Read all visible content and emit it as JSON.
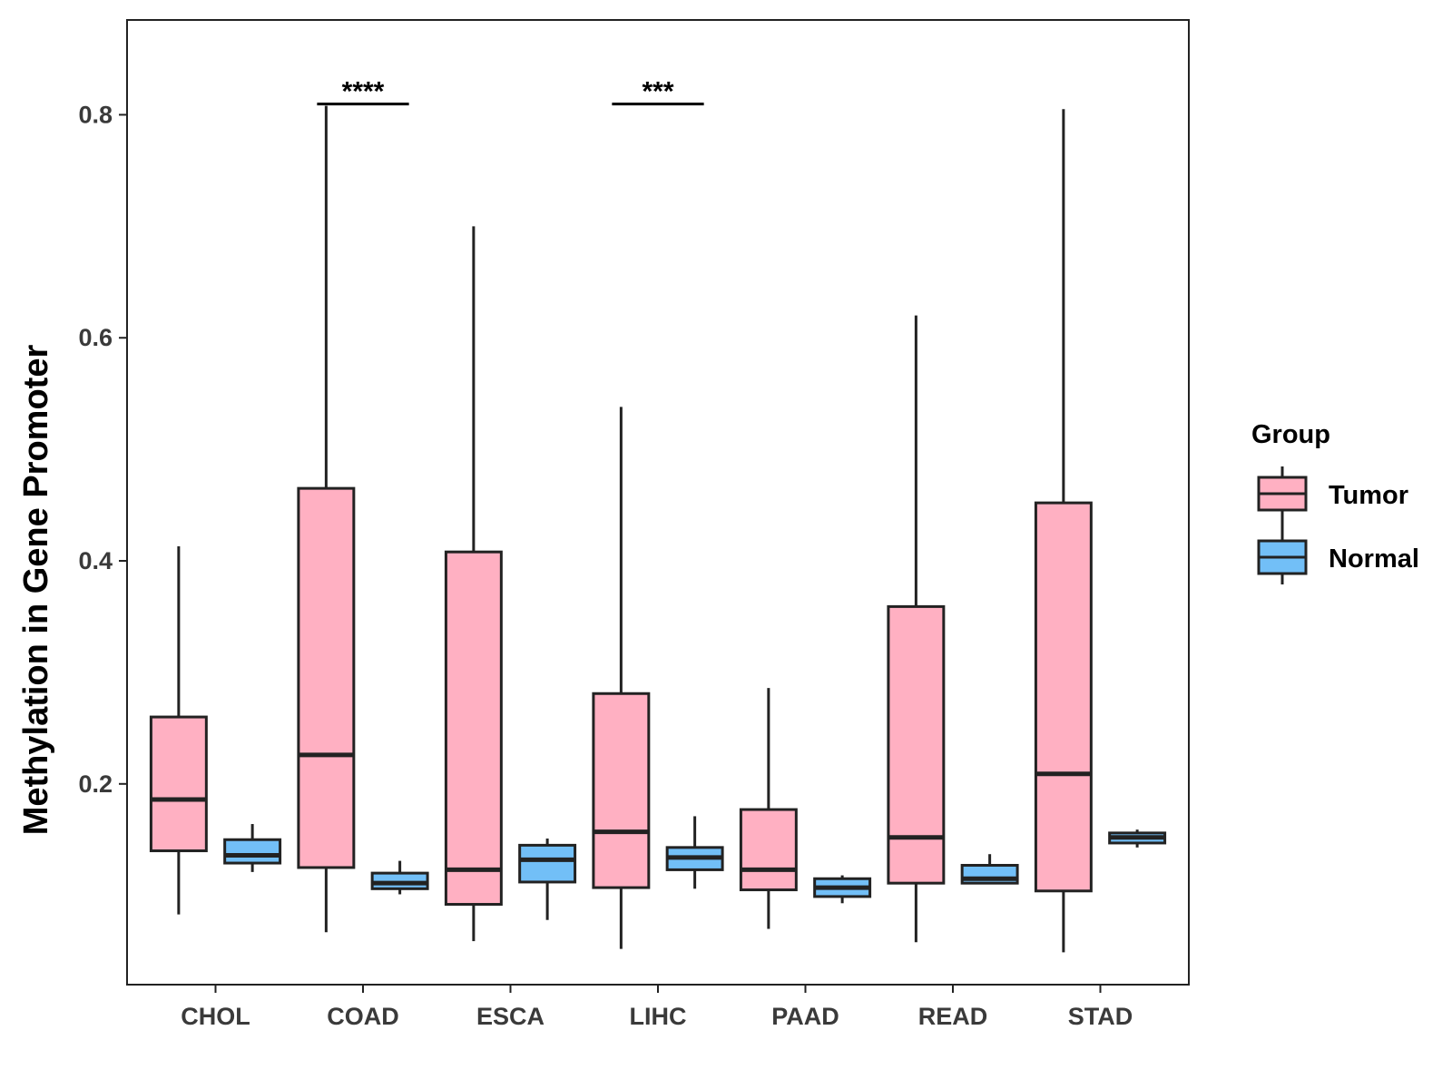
{
  "chart_data": {
    "type": "boxplot",
    "title": "",
    "xlabel": "",
    "ylabel": "Methylation in Gene Promoter",
    "ylim": [
      0.02,
      0.885
    ],
    "yticks": [
      0.2,
      0.4,
      0.6,
      0.8
    ],
    "ytick_labels": [
      "0.2",
      "0.4",
      "0.6",
      "0.8"
    ],
    "categories": [
      "CHOL",
      "COAD",
      "ESCA",
      "LIHC",
      "PAAD",
      "READ",
      "STAD"
    ],
    "legend": {
      "title": "Group",
      "position": "right",
      "entries": [
        {
          "name": "Tumor",
          "color": "#FFB0C2"
        },
        {
          "name": "Normal",
          "color": "#72BFF7"
        }
      ]
    },
    "series": [
      {
        "name": "Tumor",
        "color": "#FFB0C2",
        "boxes": [
          {
            "whisker_low": 0.083,
            "q1": 0.14,
            "median": 0.186,
            "q3": 0.26,
            "whisker_high": 0.413
          },
          {
            "whisker_low": 0.067,
            "q1": 0.125,
            "median": 0.226,
            "q3": 0.465,
            "whisker_high": 0.808
          },
          {
            "whisker_low": 0.059,
            "q1": 0.092,
            "median": 0.123,
            "q3": 0.408,
            "whisker_high": 0.7
          },
          {
            "whisker_low": 0.052,
            "q1": 0.107,
            "median": 0.157,
            "q3": 0.281,
            "whisker_high": 0.538
          },
          {
            "whisker_low": 0.07,
            "q1": 0.105,
            "median": 0.123,
            "q3": 0.177,
            "whisker_high": 0.286
          },
          {
            "whisker_low": 0.058,
            "q1": 0.111,
            "median": 0.152,
            "q3": 0.359,
            "whisker_high": 0.62
          },
          {
            "whisker_low": 0.049,
            "q1": 0.104,
            "median": 0.209,
            "q3": 0.452,
            "whisker_high": 0.805
          }
        ]
      },
      {
        "name": "Normal",
        "color": "#72BFF7",
        "boxes": [
          {
            "whisker_low": 0.121,
            "q1": 0.129,
            "median": 0.136,
            "q3": 0.15,
            "whisker_high": 0.164
          },
          {
            "whisker_low": 0.101,
            "q1": 0.106,
            "median": 0.111,
            "q3": 0.12,
            "whisker_high": 0.131
          },
          {
            "whisker_low": 0.078,
            "q1": 0.112,
            "median": 0.132,
            "q3": 0.145,
            "whisker_high": 0.151
          },
          {
            "whisker_low": 0.106,
            "q1": 0.123,
            "median": 0.134,
            "q3": 0.143,
            "whisker_high": 0.171
          },
          {
            "whisker_low": 0.093,
            "q1": 0.099,
            "median": 0.107,
            "q3": 0.115,
            "whisker_high": 0.118
          },
          {
            "whisker_low": 0.11,
            "q1": 0.111,
            "median": 0.115,
            "q3": 0.127,
            "whisker_high": 0.137
          },
          {
            "whisker_low": 0.143,
            "q1": 0.147,
            "median": 0.152,
            "q3": 0.156,
            "whisker_high": 0.159
          }
        ]
      }
    ],
    "annotations": [
      {
        "category": "COAD",
        "text": "****",
        "y": 0.808
      },
      {
        "category": "LIHC",
        "text": "***",
        "y": 0.808
      }
    ]
  }
}
